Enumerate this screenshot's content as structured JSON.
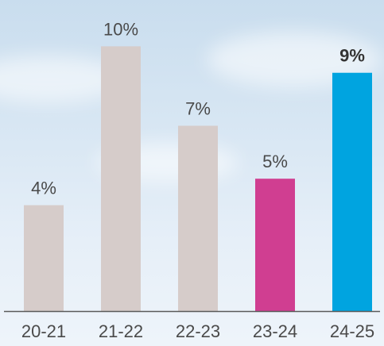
{
  "chart_data": {
    "type": "bar",
    "categories": [
      "20-21",
      "21-22",
      "22-23",
      "23-24",
      "24-25"
    ],
    "values": [
      4,
      10,
      7,
      5,
      9
    ],
    "value_labels": [
      "4%",
      "10%",
      "7%",
      "5%",
      "9%"
    ],
    "bold_value_index": 4,
    "ylim": [
      0,
      11
    ],
    "grid": false,
    "colors": [
      "#d6ccca",
      "#d6ccca",
      "#d6ccca",
      "#d03e91",
      "#00a4e0"
    ],
    "baseline_color": "#5a5a5a"
  }
}
